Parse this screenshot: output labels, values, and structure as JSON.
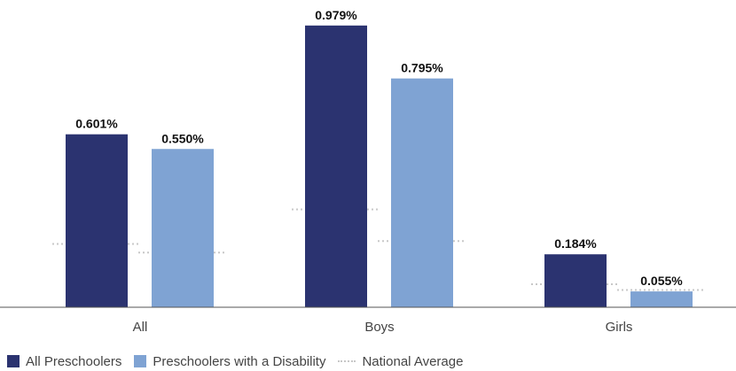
{
  "chart_data": {
    "type": "bar",
    "categories": [
      "All",
      "Boys",
      "Girls"
    ],
    "series": [
      {
        "name": "All Preschoolers",
        "values": [
          0.601,
          0.979,
          0.184
        ],
        "labels": [
          "0.601%",
          "0.979%",
          "0.184%"
        ],
        "color": "#2b3370"
      },
      {
        "name": "Preschoolers with a Disability",
        "values": [
          0.55,
          0.795,
          0.055
        ],
        "labels": [
          "0.550%",
          "0.795%",
          "0.055%"
        ],
        "color": "#7fa3d3"
      }
    ],
    "national_average": {
      "name": "National Average",
      "values": [
        [
          0.22,
          0.19
        ],
        [
          0.34,
          0.23
        ],
        [
          0.08,
          0.06
        ]
      ],
      "color": "#c8c8c8"
    },
    "ylim": [
      0,
      1.0
    ],
    "legend_position": "bottom-left",
    "grid": false
  }
}
